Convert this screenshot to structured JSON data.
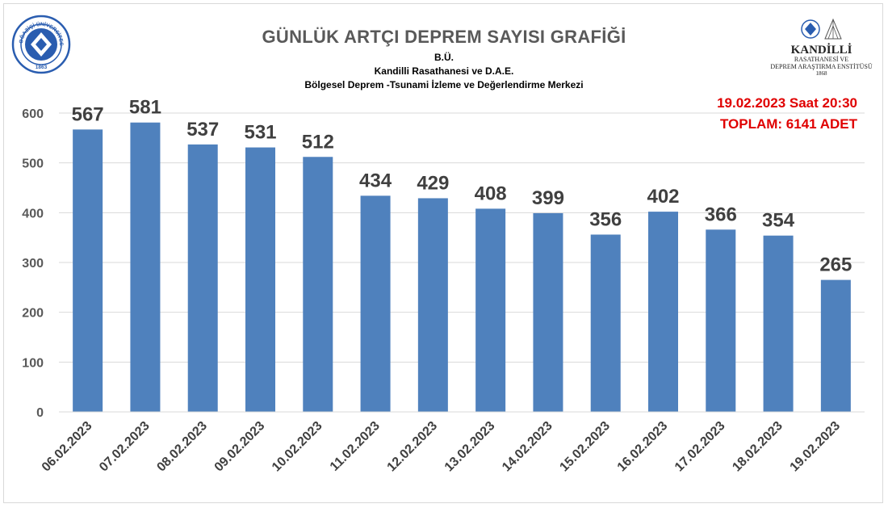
{
  "header": {
    "title": "GÜNLÜK ARTÇI DEPREM SAYISI GRAFİĞİ",
    "subtitle_1": "B.Ü.",
    "subtitle_2": "Kandilli Rasathanesi ve D.A.E.",
    "subtitle_3": "Bölgesel Deprem -Tsunami İzleme ve Değerlendirme Merkezi"
  },
  "annotations": {
    "date_line": "19.02.2023 Saat 20:30",
    "total_line": "TOPLAM:  6141 ADET"
  },
  "logos": {
    "left_seal_text": "BOĞAZİÇİ ÜNİVERSİTESİ",
    "left_seal_year": "1863",
    "right_name": "KANDİLLİ",
    "right_line2": "RASATHANESİ VE",
    "right_line3": "DEPREM ARAŞTIRMA ENSTİTÜSÜ",
    "right_year": "1868"
  },
  "colors": {
    "bar": "#4f81bd",
    "title": "#595959",
    "note": "#e00000",
    "seal": "#2a5db0"
  },
  "chart_data": {
    "type": "bar",
    "categories": [
      "06.02.2023",
      "07.02.2023",
      "08.02.2023",
      "09.02.2023",
      "10.02.2023",
      "11.02.2023",
      "12.02.2023",
      "13.02.2023",
      "14.02.2023",
      "15.02.2023",
      "16.02.2023",
      "17.02.2023",
      "18.02.2023",
      "19.02.2023"
    ],
    "values": [
      567,
      581,
      537,
      531,
      512,
      434,
      429,
      408,
      399,
      356,
      402,
      366,
      354,
      265
    ],
    "title": "GÜNLÜK ARTÇI DEPREM SAYISI GRAFİĞİ",
    "xlabel": "",
    "ylabel": "",
    "ylim": [
      0,
      600
    ],
    "yticks": [
      0,
      100,
      200,
      300,
      400,
      500,
      600
    ],
    "grid": true,
    "data_labels": true
  }
}
